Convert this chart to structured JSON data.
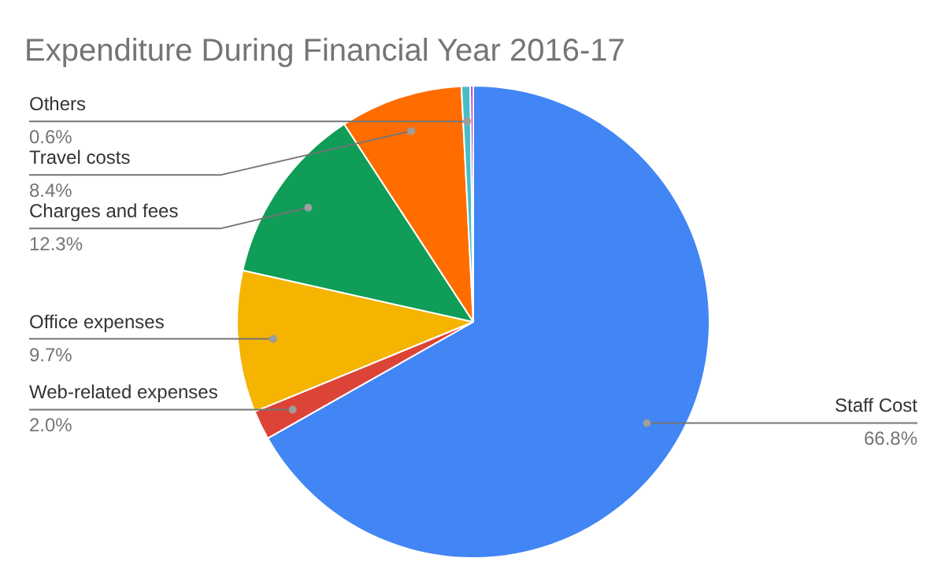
{
  "chart_data": {
    "type": "pie",
    "title": "Expenditure During Financial Year 2016-17",
    "categories": [
      "Staff Cost",
      "Web-related expenses",
      "Office expenses",
      "Charges and fees",
      "Travel costs",
      "Others",
      null
    ],
    "values": [
      66.8,
      2.0,
      9.7,
      12.3,
      8.4,
      0.6,
      0.2
    ],
    "colors": [
      "#4285f4",
      "#db4437",
      "#f4b400",
      "#0f9d58",
      "#ff6d01",
      "#46bdc6",
      "#ab30c4"
    ],
    "value_labels": [
      "66.8%",
      "2.0%",
      "9.7%",
      "12.3%",
      "8.4%",
      "0.6%",
      null
    ]
  }
}
